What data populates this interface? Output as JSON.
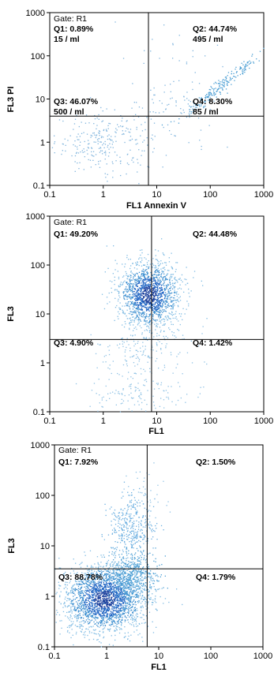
{
  "chart_data": [
    {
      "type": "scatter",
      "gate": "Gate: R1",
      "xlabel": "FL1  Annexin V",
      "ylabel": "FL3  PI",
      "xscale": "log",
      "yscale": "log",
      "xlim": [
        0.1,
        1000
      ],
      "ylim": [
        0.1,
        1000
      ],
      "xtick_labels": [
        "0.1",
        "1",
        "10",
        "100",
        "1000"
      ],
      "ytick_labels": [
        "0.1",
        "1",
        "10",
        "100",
        "1000"
      ],
      "quadrant_gate": {
        "x": 7,
        "y": 4
      },
      "quadrants": [
        {
          "label": "Q1: 0.89%",
          "count": "15 / ml"
        },
        {
          "label": "Q2: 44.74%",
          "count": "495 / ml"
        },
        {
          "label": "Q3: 46.07%",
          "count": "500 / ml"
        },
        {
          "label": "Q4: 8.30%",
          "count": "85 / ml"
        }
      ],
      "clusters": [
        {
          "cx": 1.0,
          "cy": 1.0,
          "sx": 0.45,
          "sy": 0.35,
          "n": 260,
          "color": "#7fb4dd"
        },
        {
          "cx": 150,
          "cy": 20,
          "sx": 0.22,
          "sy": 0.2,
          "n": 200,
          "color": "#4c9fd4",
          "diagonal": true
        },
        {
          "cx": 20,
          "cy": 5,
          "sx": 0.45,
          "sy": 0.4,
          "n": 90,
          "color": "#7fb4dd"
        },
        {
          "cx": 30,
          "cy": 100,
          "sx": 0.4,
          "sy": 0.3,
          "n": 25,
          "color": "#7fb4dd"
        }
      ]
    },
    {
      "type": "scatter",
      "gate": "Gate: R1",
      "xlabel": "FL1",
      "ylabel": "FL3",
      "xscale": "log",
      "yscale": "log",
      "xlim": [
        0.1,
        1000
      ],
      "ylim": [
        0.1,
        1000
      ],
      "xtick_labels": [
        "0.1",
        "1",
        "10",
        "100",
        "1000"
      ],
      "ytick_labels": [
        "0.1",
        "1",
        "10",
        "100",
        "1000"
      ],
      "quadrant_gate": {
        "x": 8,
        "y": 3
      },
      "quadrants": [
        {
          "label": "Q1: 49.20%",
          "count": ""
        },
        {
          "label": "Q2: 44.48%",
          "count": ""
        },
        {
          "label": "Q3: 4.90%",
          "count": ""
        },
        {
          "label": "Q4: 1.42%",
          "count": ""
        }
      ],
      "clusters": [
        {
          "cx": 7,
          "cy": 25,
          "sx": 0.3,
          "sy": 0.35,
          "n": 1500,
          "color": "#3d8fd0",
          "dense": true
        },
        {
          "cx": 6,
          "cy": 1.5,
          "sx": 0.4,
          "sy": 0.5,
          "n": 220,
          "color": "#8ec1e4"
        },
        {
          "cx": 5,
          "cy": 0.2,
          "sx": 0.5,
          "sy": 0.15,
          "n": 80,
          "color": "#8ec1e4"
        }
      ]
    },
    {
      "type": "scatter",
      "gate": "Gate: R1",
      "xlabel": "FL1",
      "ylabel": "FL3",
      "xscale": "log",
      "yscale": "log",
      "xlim": [
        0.1,
        1000
      ],
      "ylim": [
        0.1,
        1000
      ],
      "xtick_labels": [
        "0.1",
        "1",
        "10",
        "100",
        "1000"
      ],
      "ytick_labels": [
        "0.1",
        "1",
        "10",
        "100",
        "1000"
      ],
      "quadrant_gate": {
        "x": 6,
        "y": 3.5
      },
      "quadrants": [
        {
          "label": "Q1: 7.92%",
          "count": ""
        },
        {
          "label": "Q2: 1.50%",
          "count": ""
        },
        {
          "label": "Q3: 88.78%",
          "count": ""
        },
        {
          "label": "Q4: 1.79%",
          "count": ""
        }
      ],
      "clusters": [
        {
          "cx": 0.9,
          "cy": 0.9,
          "sx": 0.4,
          "sy": 0.35,
          "n": 2200,
          "color": "#3d8fd0",
          "dense": true
        },
        {
          "cx": 3,
          "cy": 2.5,
          "sx": 0.25,
          "sy": 0.25,
          "n": 500,
          "color": "#4c9fd4"
        },
        {
          "cx": 3,
          "cy": 25,
          "sx": 0.2,
          "sy": 0.3,
          "n": 350,
          "color": "#6aaee0"
        },
        {
          "cx": 5,
          "cy": 120,
          "sx": 0.25,
          "sy": 0.3,
          "n": 40,
          "color": "#8ec1e4"
        }
      ]
    }
  ]
}
